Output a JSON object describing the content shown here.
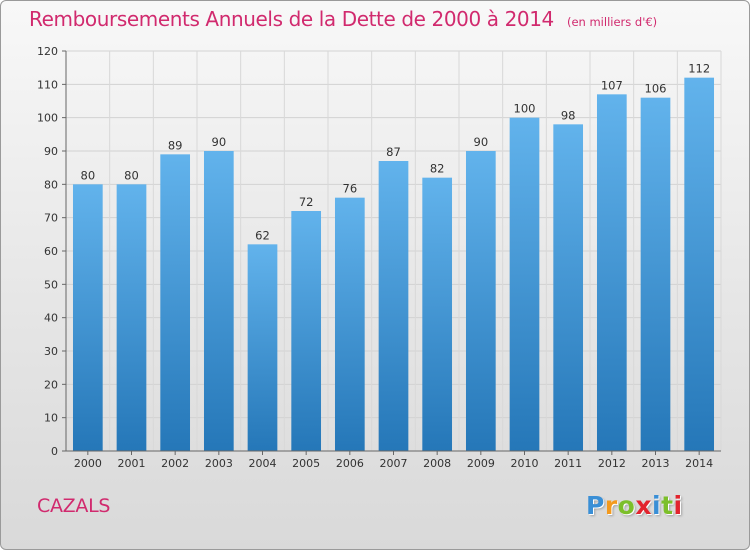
{
  "chart_data": {
    "type": "bar",
    "title": "Remboursements Annuels de la Dette de 2000 à 2014",
    "unit": "(en milliers d'€)",
    "categories": [
      "2000",
      "2001",
      "2002",
      "2003",
      "2004",
      "2005",
      "2006",
      "2007",
      "2008",
      "2009",
      "2010",
      "2011",
      "2012",
      "2013",
      "2014"
    ],
    "values": [
      80,
      80,
      89,
      90,
      62,
      72,
      76,
      87,
      82,
      90,
      100,
      98,
      107,
      106,
      112
    ],
    "ylim": [
      0,
      120
    ],
    "yticks": [
      0,
      10,
      20,
      30,
      40,
      50,
      60,
      70,
      80,
      90,
      100,
      110,
      120
    ],
    "grid": true,
    "xlabel": "",
    "ylabel": ""
  },
  "place_name": "CAZALS",
  "logo": {
    "letters": [
      "P",
      "r",
      "o",
      "x",
      "i",
      "t",
      "i"
    ],
    "colors": [
      "#3a8fd6",
      "#f39a1e",
      "#7cbf2a",
      "#e2242e",
      "#3a8fd6",
      "#7cbf2a",
      "#e2242e"
    ]
  },
  "colors": {
    "accent": "#d12a6e",
    "bar_top": "#62b3ec",
    "bar_bottom": "#2577b8"
  }
}
